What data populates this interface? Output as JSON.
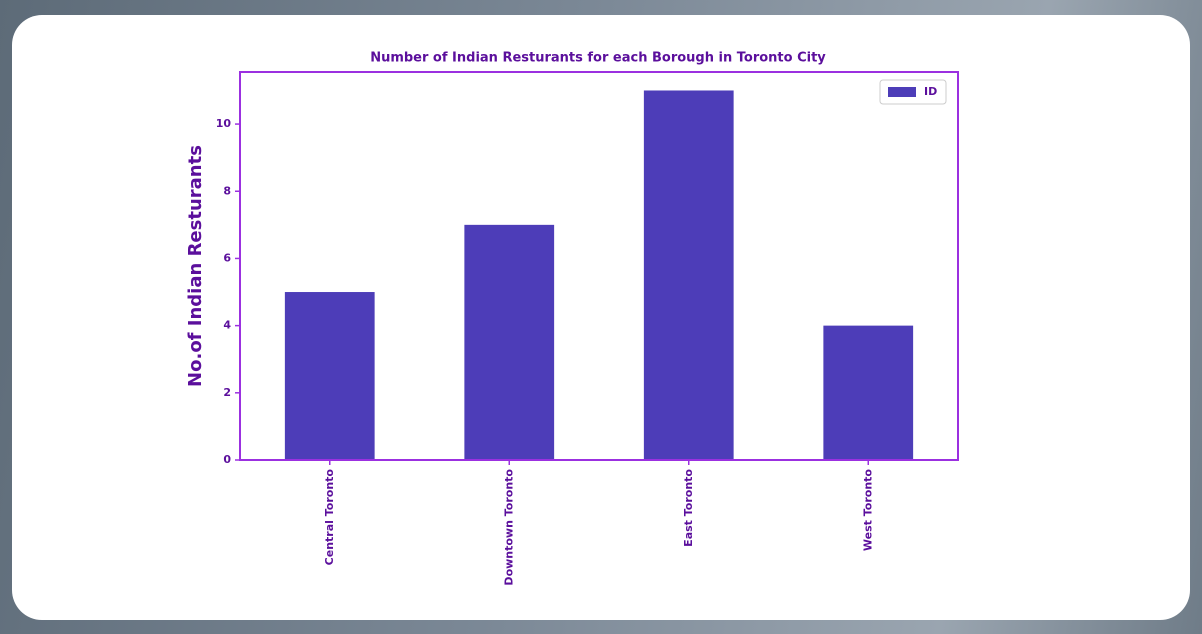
{
  "chart_data": {
    "type": "bar",
    "title": "Number of Indian Resturants for each Borough in Toronto City",
    "ylabel": "No.of Indian Resturants",
    "categories": [
      "Central Toronto",
      "Downtown Toronto",
      "East Toronto",
      "West Toronto"
    ],
    "series": [
      {
        "name": "ID",
        "color": "#4d3db8",
        "values": [
          5,
          7,
          11,
          4
        ]
      }
    ],
    "ylim": [
      0,
      11.55
    ],
    "yticks": [
      0,
      2,
      4,
      6,
      8,
      10
    ],
    "grid": false,
    "legend": "upper right"
  }
}
